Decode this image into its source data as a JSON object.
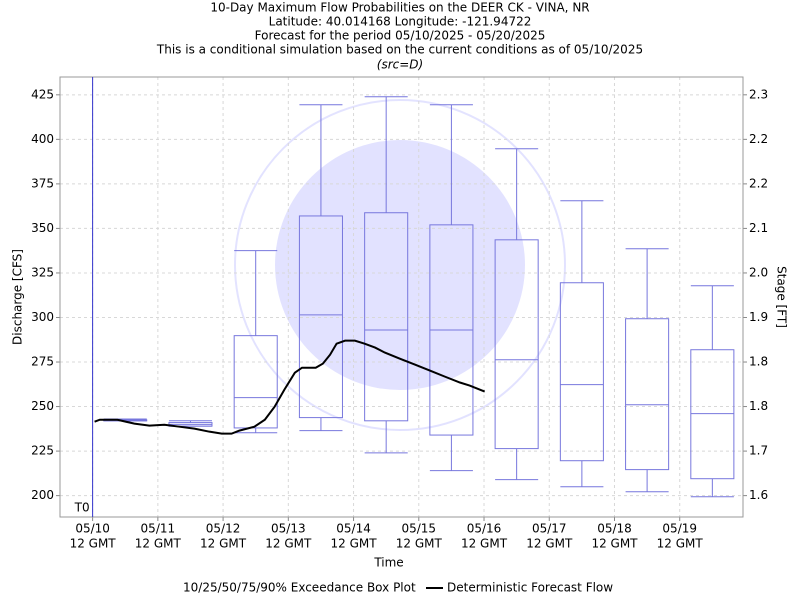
{
  "chart_data": {
    "type": "box",
    "title": "10-Day Maximum Flow Probabilities on the DEER CK - VINA, NR",
    "subtitles": [
      "Latitude: 40.014168 Longitude: -121.94722",
      "Forecast for the period 05/10/2025 - 05/20/2025",
      "This is a conditional simulation based on the current conditions as of 05/10/2025"
    ],
    "source": "(src=D)",
    "x_label": "Time",
    "y_label": "Discharge [CFS]",
    "y2_label": "Stage [FT]",
    "xlim": [
      -0.5,
      9.97
    ],
    "xticks": [
      {
        "value": 0,
        "label": "05/10"
      },
      {
        "value": 1,
        "label": "05/11"
      },
      {
        "value": 2,
        "label": "05/12"
      },
      {
        "value": 3,
        "label": "05/13"
      },
      {
        "value": 4,
        "label": "05/14"
      },
      {
        "value": 5,
        "label": "05/15"
      },
      {
        "value": 6,
        "label": "05/16"
      },
      {
        "value": 7,
        "label": "05/17"
      },
      {
        "value": 8,
        "label": "05/18"
      },
      {
        "value": 9,
        "label": "05/19"
      }
    ],
    "xtick_suffix": "12 GMT",
    "ylim": [
      188,
      435
    ],
    "yticks": [
      200,
      225,
      250,
      275,
      300,
      325,
      350,
      375,
      400,
      425
    ],
    "y2lim": [
      1.5566,
      2.347
    ],
    "y2ticks": [
      {
        "value": 1.595,
        "label": "1.6"
      },
      {
        "value": 1.675,
        "label": "1.7"
      },
      {
        "value": 1.755,
        "label": "1.8"
      },
      {
        "value": 1.835,
        "label": "1.8"
      },
      {
        "value": 1.915,
        "label": "1.9"
      },
      {
        "value": 1.995,
        "label": "2.0"
      },
      {
        "value": 2.075,
        "label": "2.1"
      },
      {
        "value": 2.155,
        "label": "2.2"
      },
      {
        "value": 2.235,
        "label": "2.2"
      },
      {
        "value": 2.315,
        "label": "2.3"
      }
    ],
    "grid": true,
    "t0": {
      "label": "T0",
      "x": 0,
      "color": "#3333cc"
    },
    "boxes": {
      "name": "10/25/50/75/90% Exceedance Box Plot",
      "color": "#7777dd",
      "x": [
        0.5,
        1.5,
        2.5,
        3.5,
        4.5,
        5.5,
        6.5,
        7.5,
        8.5,
        9.5
      ],
      "p10": [
        242,
        239,
        235.3,
        236.5,
        224,
        214,
        209,
        205,
        202.2,
        199.4
      ],
      "p25": [
        242,
        239,
        238,
        243.8,
        242,
        234,
        226.4,
        219.6,
        214.6,
        209.5
      ],
      "p50": [
        242,
        240,
        255,
        301.5,
        293,
        293,
        276.3,
        262.3,
        251,
        246
      ],
      "p75": [
        242.5,
        241,
        289.8,
        357,
        358.8,
        352,
        343.6,
        319.5,
        299.3,
        281.9
      ],
      "p90": [
        243,
        242,
        337.5,
        419.4,
        423.9,
        419.4,
        394.7,
        365.5,
        338.6,
        317.8
      ]
    },
    "line": {
      "name": "Deterministic Forecast Flow",
      "color": "#000000",
      "x": [
        0.03,
        0.11,
        0.38,
        0.64,
        0.87,
        1.1,
        1.33,
        1.56,
        1.79,
        1.98,
        2.13,
        2.25,
        2.48,
        2.64,
        2.79,
        2.94,
        3.1,
        3.21,
        3.42,
        3.53,
        3.64,
        3.74,
        3.87,
        4.02,
        4.17,
        4.33,
        4.48,
        4.71,
        4.94,
        5.17,
        5.4,
        5.63,
        5.78,
        6.01
      ],
      "values": [
        241.5,
        242.6,
        242.6,
        240.4,
        239.3,
        239.8,
        238.7,
        237.6,
        235.9,
        234.8,
        234.8,
        236.5,
        238.7,
        242.6,
        249.9,
        259.5,
        269.0,
        271.8,
        271.8,
        274.1,
        279.1,
        285.3,
        287.0,
        287.0,
        285.3,
        283.1,
        280.3,
        276.9,
        273.6,
        270.2,
        266.8,
        263.5,
        261.8,
        258.4
      ]
    }
  }
}
